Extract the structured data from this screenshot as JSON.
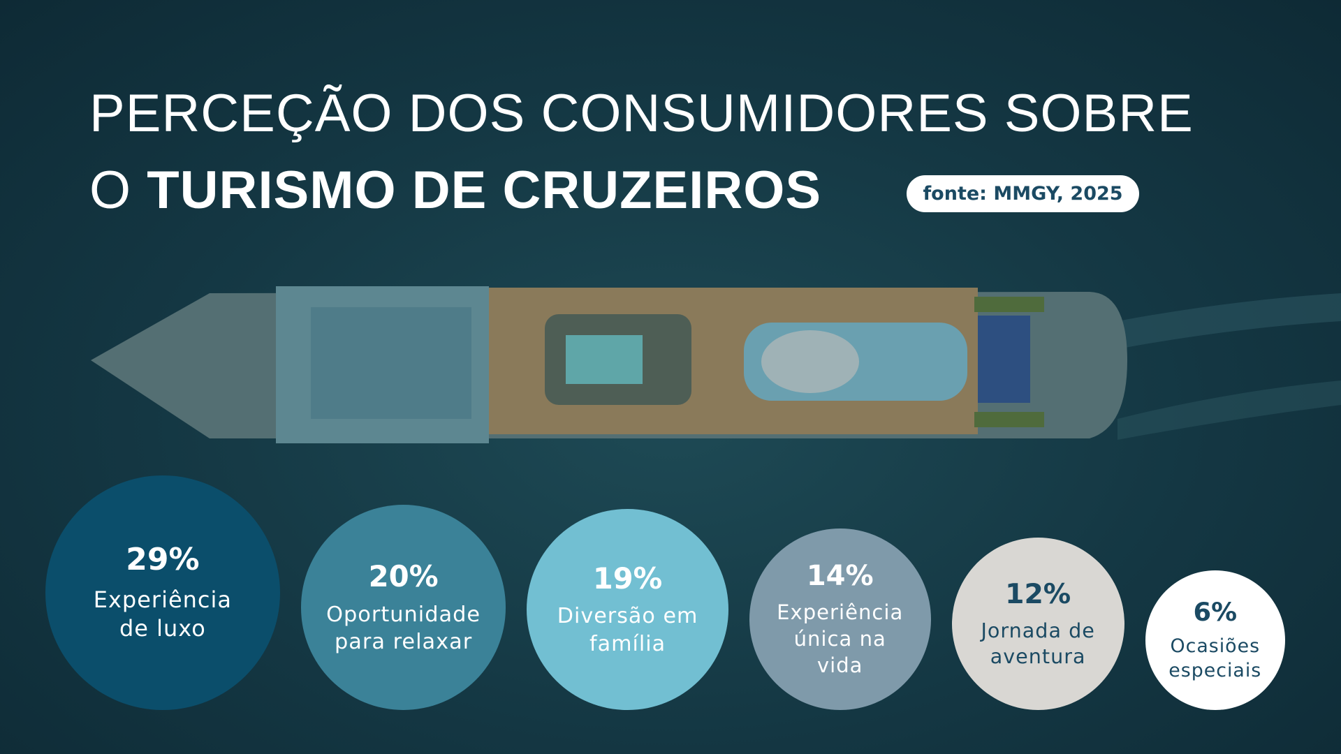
{
  "chart_data": {
    "type": "bubble",
    "title": {
      "line1": "PERCEÇÃO DOS CONSUMIDORES SOBRE",
      "prefix": "O",
      "highlight": "TURISMO DE CRUZEIROS"
    },
    "source": "fonte: MMGY, 2025",
    "categories": [
      "Experiência\nde luxo",
      "Oportunidade\npara relaxar",
      "Diversão em\nfamília",
      "Experiência\núnica na\nvida",
      "Jornada de\naventura",
      "Ocasiões\nespeciais"
    ],
    "values": [
      29,
      20,
      19,
      14,
      12,
      6
    ],
    "value_labels": [
      "29%",
      "20%",
      "19%",
      "14%",
      "12%",
      "6%"
    ],
    "colors": [
      "#0b4e6b",
      "#3b8298",
      "#72bfd2",
      "#7f9aaa",
      "#d9d7d3",
      "#ffffff"
    ]
  }
}
